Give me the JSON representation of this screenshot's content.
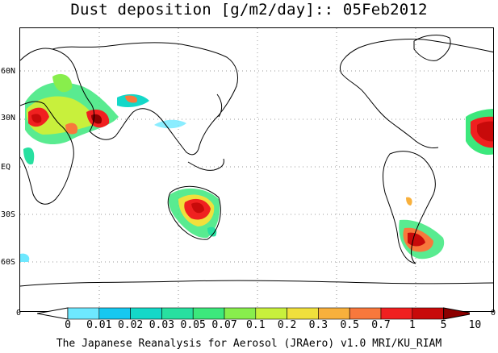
{
  "title": "Dust deposition [g/m2/day]:: 05Feb2012",
  "axes": {
    "lat_labels": [
      "60N",
      "30N",
      "EQ",
      "30S",
      "60S"
    ],
    "lon_edge_left": "0",
    "lon_edge_right": "0"
  },
  "colorbar": {
    "levels": [
      "0",
      "0.01",
      "0.02",
      "0.03",
      "0.05",
      "0.07",
      "0.1",
      "0.2",
      "0.3",
      "0.5",
      "0.7",
      "1",
      "5",
      "10"
    ],
    "colors": [
      "#ffffff",
      "#6ee8ff",
      "#17c8f0",
      "#14d8c8",
      "#28e0a0",
      "#3ce87c",
      "#88ee4c",
      "#c8f03c",
      "#f0e03c",
      "#f8b03c",
      "#f8783c",
      "#f02020",
      "#c80a0a",
      "#8c0000"
    ]
  },
  "credit": "The Japanese Reanalysis for Aerosol (JRAero) v1.0 MRI/KU_RIAM"
}
